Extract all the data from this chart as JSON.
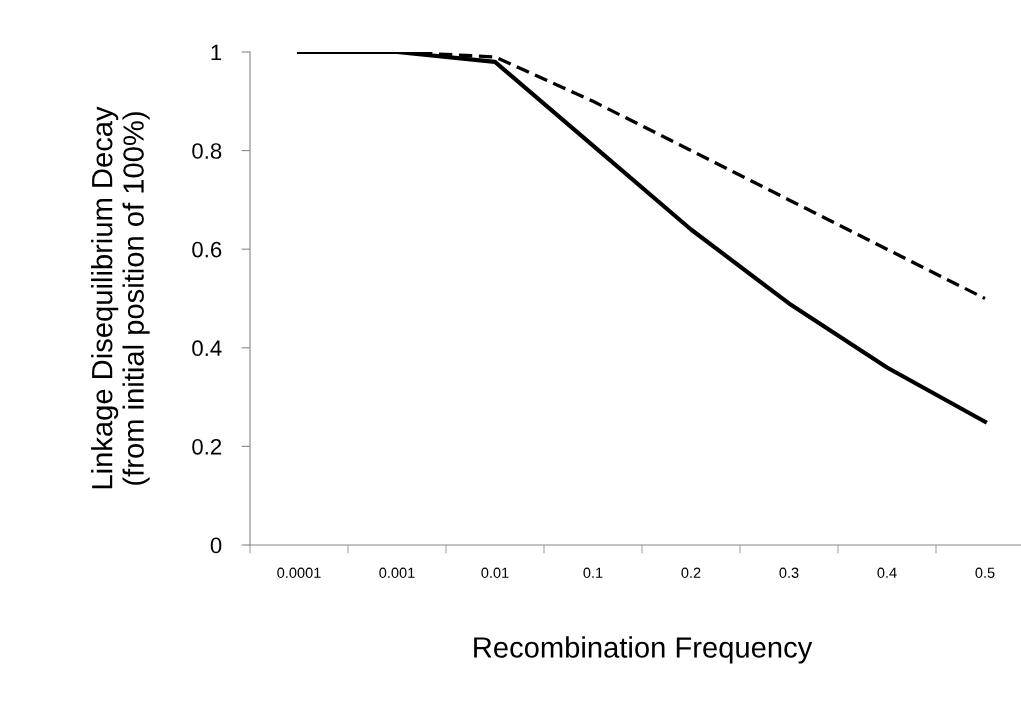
{
  "chart_data": {
    "type": "line",
    "xlabel": "Recombination Frequency",
    "ylabel": "Linkage Disequilibrium Decay\n(from initial position of 100%)",
    "categories": [
      "0.0001",
      "0.001",
      "0.01",
      "0.1",
      "0.2",
      "0.3",
      "0.4",
      "0.5"
    ],
    "series": [
      {
        "color": "#000000",
        "line_style": "solid",
        "values": [
          1.0,
          1.0,
          0.98,
          0.81,
          0.64,
          0.49,
          0.36,
          0.25
        ]
      },
      {
        "color": "#000000",
        "line_style": "dashed",
        "values": [
          1.0,
          1.0,
          0.99,
          0.9,
          0.8,
          0.7,
          0.6,
          0.5
        ]
      }
    ],
    "ylim": [
      0,
      1
    ],
    "yticks": [
      0,
      0.2,
      0.4,
      0.6,
      0.8,
      1
    ],
    "grid": false,
    "legend": false,
    "marker": "none"
  }
}
